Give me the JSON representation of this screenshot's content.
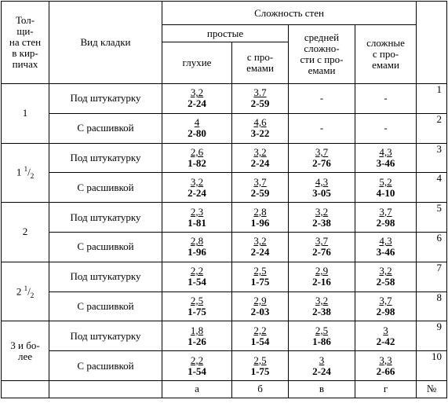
{
  "header": {
    "thickness": [
      "Тол-",
      "щи-",
      "на стен",
      "в кир-",
      "пичах"
    ],
    "masonry": "Вид кладки",
    "complexity": "Сложность стен",
    "simple": "простые",
    "blind": "глухие",
    "with_openings": [
      "с про-",
      "емами"
    ],
    "medium": [
      "средней",
      "сложно-",
      "сти с про-",
      "емами"
    ],
    "complex": [
      "сложные",
      "с про-",
      "емами"
    ]
  },
  "groups": [
    {
      "thickness": {
        "lines": [
          "1"
        ]
      },
      "rows": [
        {
          "type": "Под штукатурку",
          "cells": [
            {
              "top": "3,2",
              "bottom": "2-24"
            },
            {
              "top": "3.7",
              "bottom": "2-59"
            },
            "-",
            "-"
          ],
          "num": 1
        },
        {
          "type": "С расшивкой",
          "cells": [
            {
              "top": "4",
              "bottom": "2-80"
            },
            {
              "top": "4,6",
              "bottom": "3-22"
            },
            "-",
            "-"
          ],
          "num": 2
        }
      ]
    },
    {
      "thickness": {
        "whole": "1",
        "num": "1",
        "den": "2"
      },
      "rows": [
        {
          "type": "Под штукатурку",
          "cells": [
            {
              "top": "2,6",
              "bottom": "1-82"
            },
            {
              "top": "3,2",
              "bottom": "2-24"
            },
            {
              "top": "3,7",
              "bottom": "2-76"
            },
            {
              "top": "4,3",
              "bottom": "3-46"
            }
          ],
          "num": 3
        },
        {
          "type": "С расшивкой",
          "cells": [
            {
              "top": "3,2",
              "bottom": "2-24"
            },
            {
              "top": "3,7",
              "bottom": "2-59"
            },
            {
              "top": "4,3",
              "bottom": "3-05"
            },
            {
              "top": "5,2",
              "bottom": "4-10"
            }
          ],
          "num": 4
        }
      ]
    },
    {
      "thickness": {
        "lines": [
          "2"
        ]
      },
      "rows": [
        {
          "type": "Под штукатурку",
          "cells": [
            {
              "top": "2,3",
              "bottom": "1-81"
            },
            {
              "top": "2,8",
              "bottom": "1-96"
            },
            {
              "top": "3,2",
              "bottom": "2-38"
            },
            {
              "top": "3,7",
              "bottom": "2-98"
            }
          ],
          "num": 5
        },
        {
          "type": "С расшивкой",
          "cells": [
            {
              "top": "2,8",
              "bottom": "1-96"
            },
            {
              "top": "3,2",
              "bottom": "2-24"
            },
            {
              "top": "3,7",
              "bottom": "2-76"
            },
            {
              "top": "4,3",
              "bottom": "3-46"
            }
          ],
          "num": 6
        }
      ]
    },
    {
      "thickness": {
        "whole": "2",
        "num": "1",
        "den": "2"
      },
      "rows": [
        {
          "type": "Под штукатурку",
          "cells": [
            {
              "top": "2,2",
              "bottom": "1-54"
            },
            {
              "top": "2,5",
              "bottom": "1-75"
            },
            {
              "top": "2,9",
              "bottom": "2-16"
            },
            {
              "top": "3,2",
              "bottom": "2-58"
            }
          ],
          "num": 7
        },
        {
          "type": "С расшивкой",
          "cells": [
            {
              "top": "2,5",
              "bottom": "1-75"
            },
            {
              "top": "2,9",
              "bottom": "2-03"
            },
            {
              "top": "3,2",
              "bottom": "2-38"
            },
            {
              "top": "3,7",
              "bottom": "2-98"
            }
          ],
          "num": 8
        }
      ]
    },
    {
      "thickness": {
        "lines": [
          "3 и бо-",
          "лее"
        ]
      },
      "rows": [
        {
          "type": "Под штукатурку",
          "cells": [
            {
              "top": "1,8",
              "bottom": "1-26"
            },
            {
              "top": "2,2",
              "bottom": "1-54"
            },
            {
              "top": "2,5",
              "bottom": "1-86"
            },
            {
              "top": "3",
              "bottom": "2-42"
            }
          ],
          "num": 9
        },
        {
          "type": "С расшивкой",
          "cells": [
            {
              "top": "2,2",
              "bottom": "1-54"
            },
            {
              "top": "2,5",
              "bottom": "1-75"
            },
            {
              "top": "3",
              "bottom": "2-24"
            },
            {
              "top": "3,3",
              "bottom": "2-66"
            }
          ],
          "num": 10
        }
      ]
    }
  ],
  "footer": [
    "а",
    "б",
    "в",
    "г",
    "№"
  ]
}
